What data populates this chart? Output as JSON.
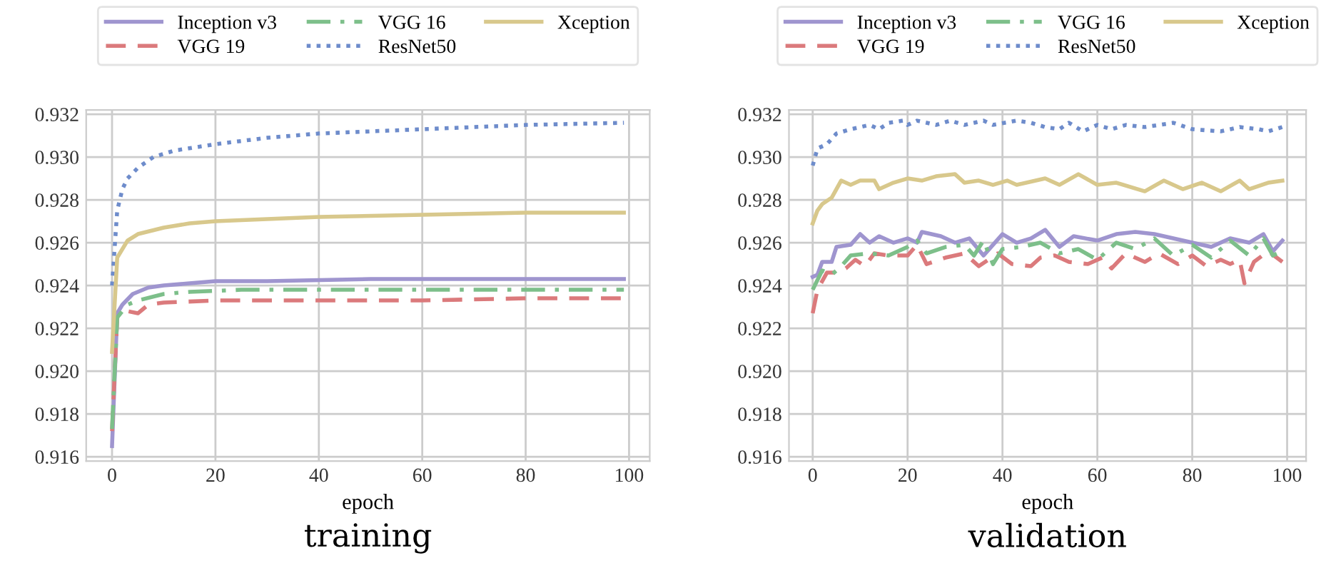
{
  "chart_data": [
    {
      "type": "line",
      "title": "training",
      "xlabel": "epoch",
      "xlim": [
        -5,
        104
      ],
      "xticks": [
        0,
        20,
        40,
        60,
        80,
        100
      ],
      "ylim": [
        0.9158,
        0.9322
      ],
      "yticks": [
        {
          "value": 0.916,
          "label": "0.916"
        },
        {
          "value": 0.918,
          "label": "0.918"
        },
        {
          "value": 0.92,
          "label": "0.920"
        },
        {
          "value": 0.922,
          "label": "0.922"
        },
        {
          "value": 0.924,
          "label": "0.924"
        },
        {
          "value": 0.926,
          "label": "0.926"
        },
        {
          "value": 0.928,
          "label": "0.928"
        },
        {
          "value": 0.93,
          "label": "0.930"
        },
        {
          "value": 0.932,
          "label": "0.932"
        }
      ],
      "grid": true,
      "legend": "top",
      "series": [
        {
          "name": "Inception v3",
          "color": "#9f95cf",
          "line_style": "solid",
          "x": [
            0,
            1,
            2,
            4,
            7,
            10,
            15,
            20,
            30,
            50,
            70,
            99
          ],
          "values": [
            0.9165,
            0.9227,
            0.9231,
            0.9236,
            0.9239,
            0.924,
            0.9241,
            0.9242,
            0.9242,
            0.9243,
            0.9243,
            0.9243
          ]
        },
        {
          "name": "VGG 19",
          "color": "#db7a7c",
          "line_style": "dashed",
          "x": [
            0,
            1,
            3,
            5,
            7,
            10,
            20,
            40,
            60,
            80,
            99
          ],
          "values": [
            0.9172,
            0.9225,
            0.9228,
            0.9227,
            0.9231,
            0.9232,
            0.9233,
            0.9233,
            0.9233,
            0.9234,
            0.9234
          ]
        },
        {
          "name": "VGG 16",
          "color": "#7dbf8a",
          "line_style": "dashdot",
          "x": [
            0,
            1,
            3,
            5,
            10,
            15,
            25,
            40,
            60,
            75,
            99
          ],
          "values": [
            0.9173,
            0.9225,
            0.9231,
            0.9233,
            0.9236,
            0.9237,
            0.9238,
            0.9238,
            0.9238,
            0.9238,
            0.9238
          ]
        },
        {
          "name": "ResNet50",
          "color": "#6e8ccb",
          "line_style": "dotted",
          "x": [
            0,
            1,
            2,
            3,
            5,
            8,
            12,
            20,
            30,
            40,
            60,
            80,
            99
          ],
          "values": [
            0.924,
            0.9275,
            0.9285,
            0.929,
            0.9295,
            0.93,
            0.9303,
            0.9306,
            0.9309,
            0.9311,
            0.9313,
            0.9315,
            0.9316
          ]
        },
        {
          "name": "Xception",
          "color": "#d8c88c",
          "line_style": "solid",
          "x": [
            0,
            1,
            3,
            5,
            10,
            15,
            20,
            30,
            40,
            60,
            80,
            99
          ],
          "values": [
            0.9209,
            0.9253,
            0.9261,
            0.9264,
            0.9267,
            0.9269,
            0.927,
            0.9271,
            0.9272,
            0.9273,
            0.9274,
            0.9274
          ]
        }
      ]
    },
    {
      "type": "line",
      "title": "validation",
      "xlabel": "epoch",
      "xlim": [
        -5,
        104
      ],
      "xticks": [
        0,
        20,
        40,
        60,
        80,
        100
      ],
      "ylim": [
        0.9158,
        0.9322
      ],
      "yticks": [
        {
          "value": 0.916,
          "label": "0.916"
        },
        {
          "value": 0.918,
          "label": "0.918"
        },
        {
          "value": 0.92,
          "label": "0.920"
        },
        {
          "value": 0.922,
          "label": "0.922"
        },
        {
          "value": 0.924,
          "label": "0.924"
        },
        {
          "value": 0.926,
          "label": "0.926"
        },
        {
          "value": 0.928,
          "label": "0.928"
        },
        {
          "value": 0.93,
          "label": "0.930"
        },
        {
          "value": 0.932,
          "label": "0.932"
        }
      ],
      "grid": true,
      "legend": "top",
      "series": [
        {
          "name": "Inception v3",
          "color": "#9f95cf",
          "line_style": "solid",
          "x": [
            0,
            1,
            2,
            4,
            5,
            8,
            10,
            12,
            14,
            17,
            20,
            22,
            23,
            27,
            30,
            33,
            36,
            40,
            43,
            46,
            49,
            52,
            55,
            60,
            64,
            68,
            72,
            76,
            80,
            84,
            88,
            92,
            95,
            97,
            99
          ],
          "values": [
            0.9244,
            0.9245,
            0.9251,
            0.9251,
            0.9258,
            0.9259,
            0.9264,
            0.926,
            0.9263,
            0.926,
            0.9262,
            0.926,
            0.9265,
            0.9263,
            0.926,
            0.9262,
            0.9254,
            0.9264,
            0.926,
            0.9262,
            0.9266,
            0.9258,
            0.9263,
            0.9261,
            0.9264,
            0.9265,
            0.9264,
            0.9262,
            0.926,
            0.9258,
            0.9262,
            0.926,
            0.9264,
            0.9256,
            0.9261
          ]
        },
        {
          "name": "VGG 19",
          "color": "#db7a7c",
          "line_style": "dashed",
          "x": [
            0,
            1,
            3,
            5,
            7,
            9,
            11,
            13,
            16,
            20,
            22,
            24,
            28,
            32,
            35,
            39,
            42,
            46,
            48,
            51,
            54,
            58,
            61,
            63,
            66,
            70,
            73,
            77,
            80,
            83,
            86,
            88,
            90,
            91,
            93,
            96,
            99
          ],
          "values": [
            0.9227,
            0.9238,
            0.9246,
            0.9246,
            0.9248,
            0.9252,
            0.9249,
            0.9255,
            0.9254,
            0.9254,
            0.9259,
            0.925,
            0.9253,
            0.9255,
            0.9249,
            0.9255,
            0.925,
            0.9249,
            0.9253,
            0.9254,
            0.9251,
            0.925,
            0.9253,
            0.9248,
            0.9255,
            0.9251,
            0.9255,
            0.925,
            0.9254,
            0.9249,
            0.9252,
            0.925,
            0.9252,
            0.9241,
            0.9251,
            0.9256,
            0.9251
          ]
        },
        {
          "name": "VGG 16",
          "color": "#7dbf8a",
          "line_style": "dashdot",
          "x": [
            0,
            2,
            4,
            6,
            8,
            12,
            16,
            20,
            22,
            24,
            28,
            32,
            34,
            36,
            38,
            40,
            44,
            48,
            52,
            56,
            60,
            64,
            68,
            72,
            76,
            80,
            84,
            88,
            92,
            95,
            97,
            99
          ],
          "values": [
            0.9238,
            0.9247,
            0.9245,
            0.9249,
            0.9254,
            0.9255,
            0.9254,
            0.9258,
            0.9261,
            0.9255,
            0.9258,
            0.9259,
            0.9254,
            0.9261,
            0.925,
            0.9257,
            0.9258,
            0.926,
            0.9255,
            0.9257,
            0.9252,
            0.926,
            0.9257,
            0.9262,
            0.9254,
            0.9259,
            0.9253,
            0.9261,
            0.9254,
            0.9262,
            0.9254,
            0.9256
          ]
        },
        {
          "name": "ResNet50",
          "color": "#6e8ccb",
          "line_style": "dotted",
          "x": [
            0,
            1,
            3,
            5,
            8,
            12,
            14,
            16,
            19,
            20,
            22,
            26,
            29,
            32,
            36,
            38,
            43,
            46,
            49,
            52,
            54,
            57,
            60,
            63,
            66,
            70,
            76,
            80,
            86,
            90,
            94,
            96,
            99
          ],
          "values": [
            0.9296,
            0.9304,
            0.9306,
            0.9311,
            0.9313,
            0.9315,
            0.9313,
            0.9316,
            0.9317,
            0.9315,
            0.9317,
            0.9315,
            0.9317,
            0.9315,
            0.9317,
            0.9315,
            0.9317,
            0.9316,
            0.9314,
            0.9313,
            0.9316,
            0.9312,
            0.9315,
            0.9313,
            0.9315,
            0.9314,
            0.9316,
            0.9313,
            0.9312,
            0.9314,
            0.9313,
            0.9312,
            0.9314
          ]
        },
        {
          "name": "Xception",
          "color": "#d8c88c",
          "line_style": "solid",
          "x": [
            0,
            1,
            2,
            4,
            6,
            8,
            10,
            13,
            14,
            17,
            20,
            23,
            26,
            30,
            32,
            35,
            38,
            41,
            43,
            49,
            52,
            56,
            60,
            64,
            70,
            74,
            78,
            82,
            86,
            90,
            92,
            96,
            99
          ],
          "values": [
            0.9269,
            0.9275,
            0.9278,
            0.9281,
            0.9289,
            0.9287,
            0.9289,
            0.9289,
            0.9285,
            0.9288,
            0.929,
            0.9289,
            0.9291,
            0.9292,
            0.9288,
            0.9289,
            0.9287,
            0.9289,
            0.9287,
            0.929,
            0.9287,
            0.9292,
            0.9287,
            0.9288,
            0.9284,
            0.9289,
            0.9285,
            0.9288,
            0.9284,
            0.9289,
            0.9285,
            0.9288,
            0.9289
          ]
        }
      ]
    }
  ]
}
